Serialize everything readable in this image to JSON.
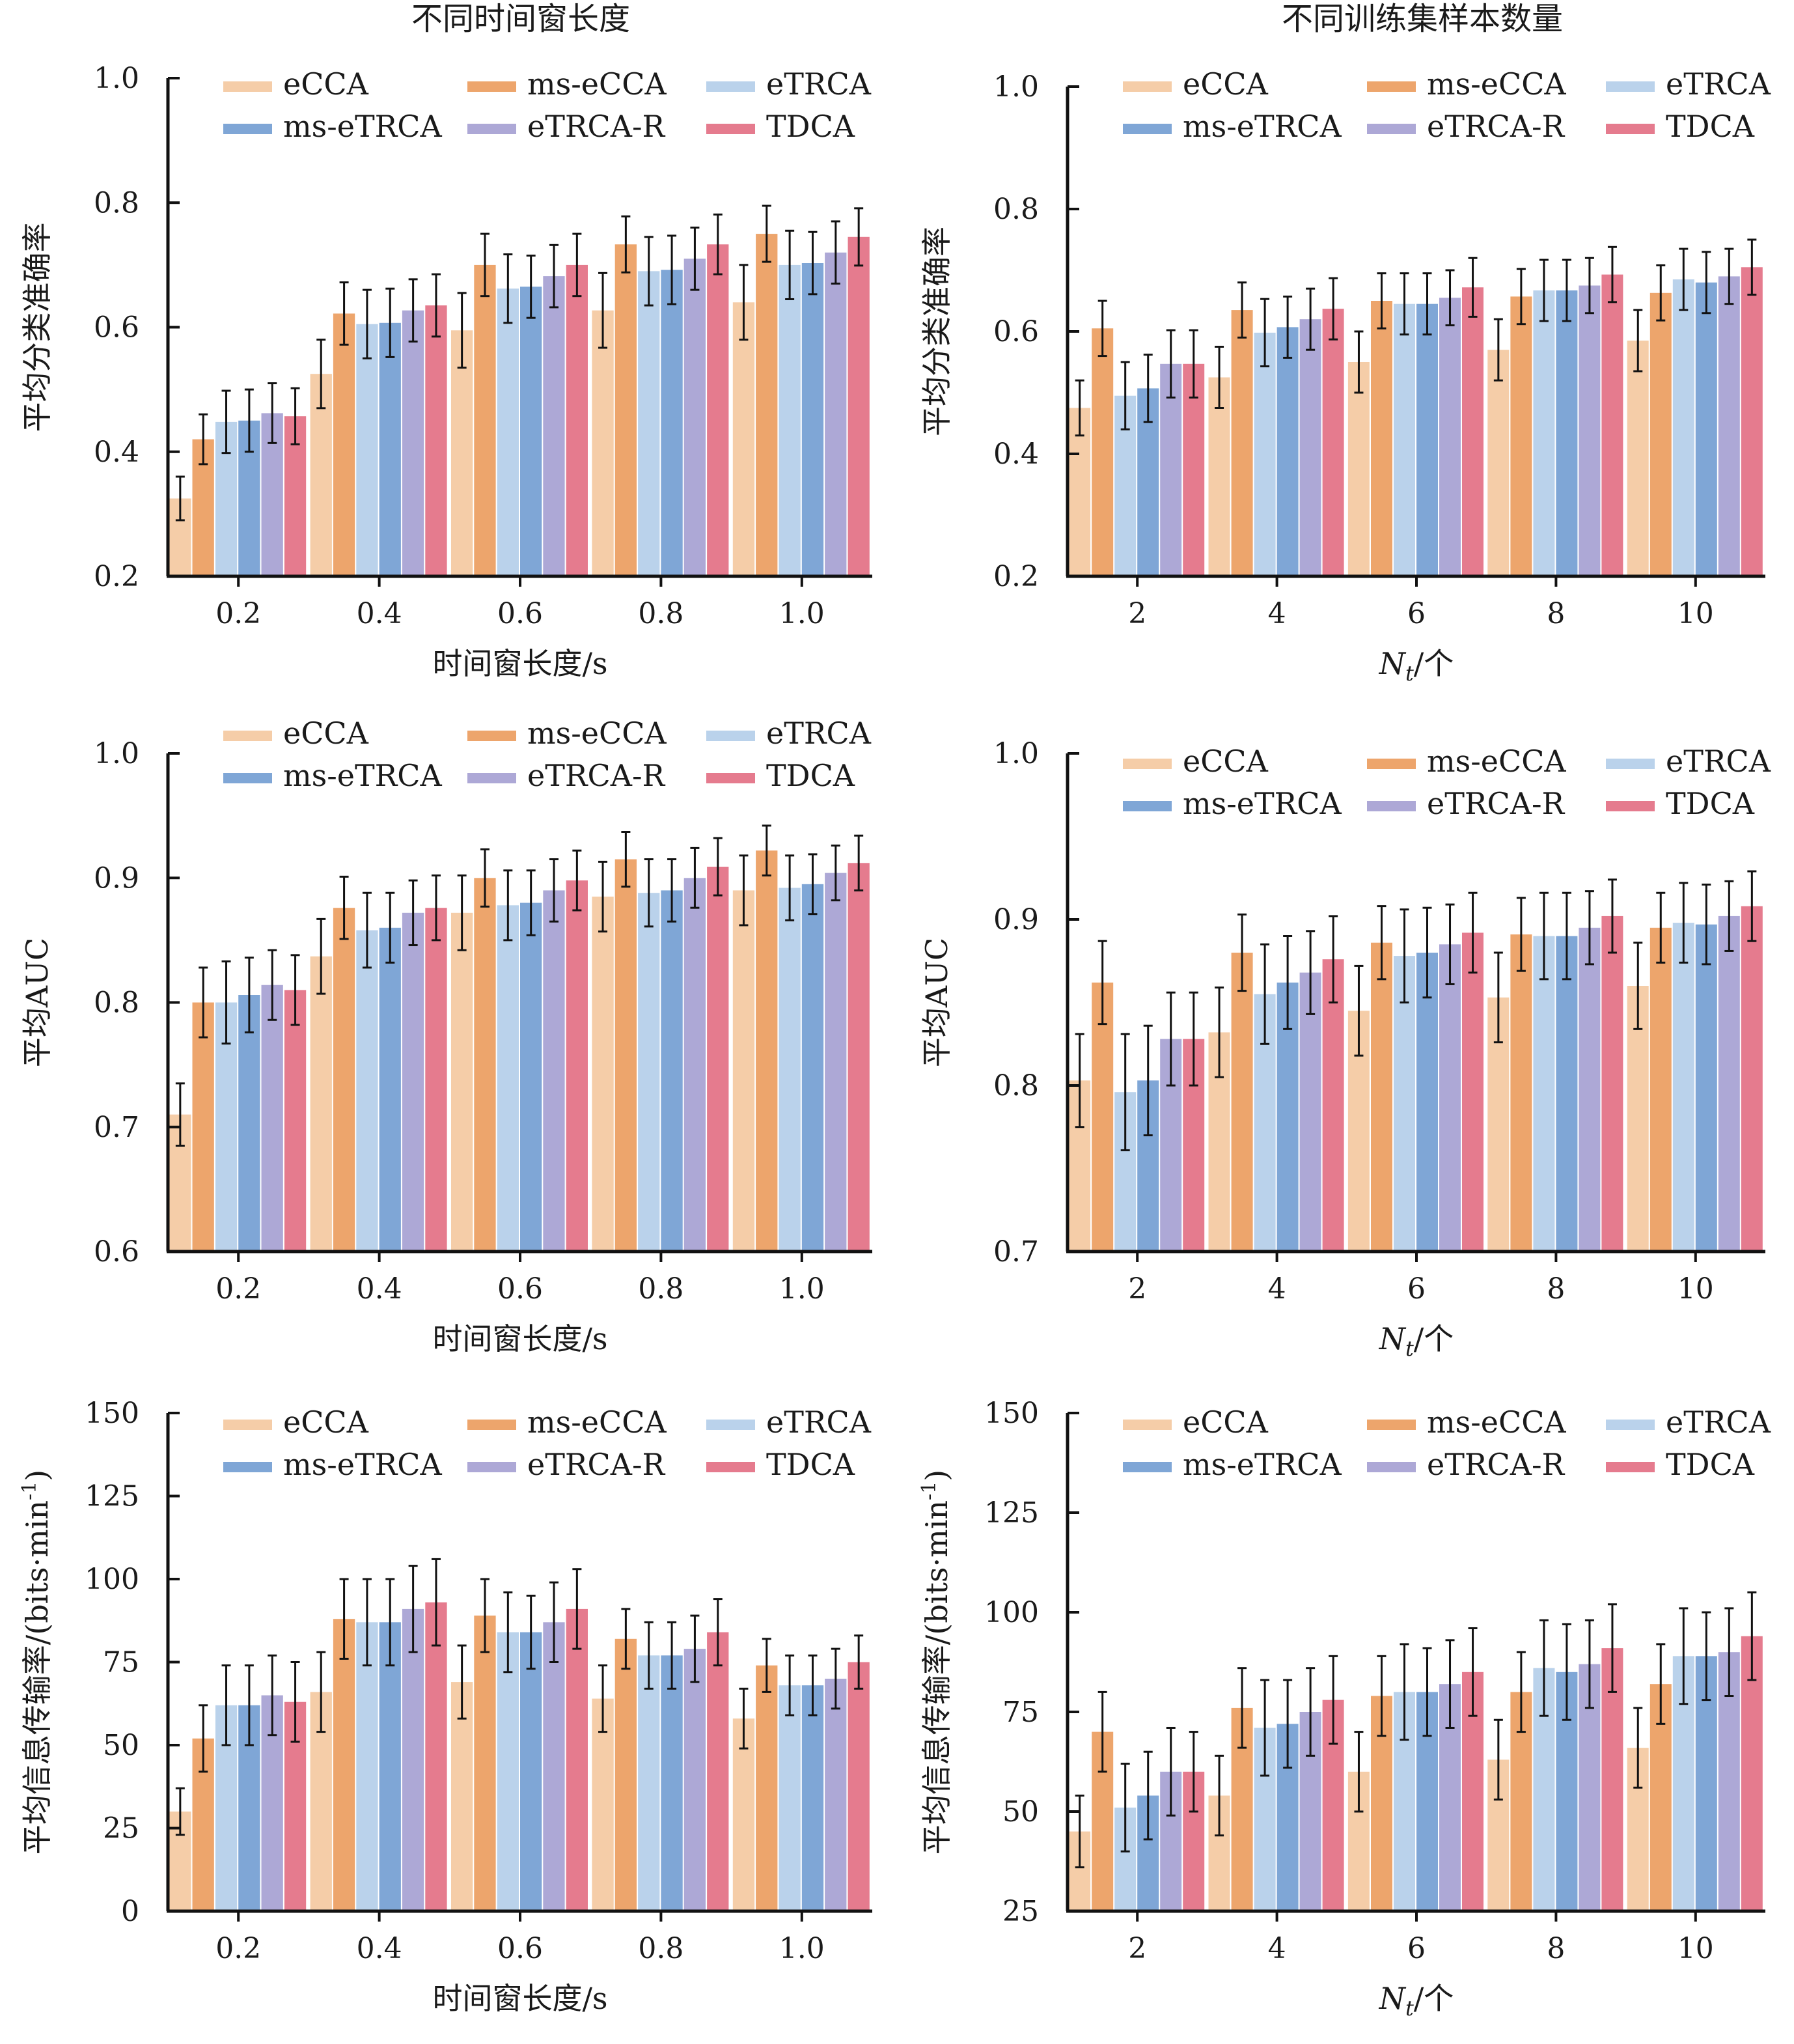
{
  "column_titles": [
    "不同时间窗长度",
    "不同训练集样本数量"
  ],
  "colors": {
    "eCCA": "#f5cda8",
    "ms-eCCA": "#eda56c",
    "eTRCA": "#bad2eb",
    "ms-eTRCA": "#7fa6d6",
    "eTRCA-R": "#ada8d6",
    "TDCA": "#e57b8e"
  },
  "chart_data": [
    {
      "type": "bar",
      "categories": [
        "0.2",
        "0.4",
        "0.6",
        "0.8",
        "1.0"
      ],
      "xlabel": "时间窗长度/s",
      "ylabel": "平均分类准确率",
      "ylim": [
        0.2,
        1.0
      ],
      "yticks": [
        "0.2",
        "0.4",
        "0.6",
        "0.8",
        "1.0"
      ],
      "legend": "top",
      "series": [
        {
          "name": "eCCA",
          "values": [
            0.325,
            0.525,
            0.595,
            0.627,
            0.64
          ],
          "errors": [
            0.035,
            0.055,
            0.06,
            0.06,
            0.06
          ]
        },
        {
          "name": "ms-eCCA",
          "values": [
            0.42,
            0.622,
            0.7,
            0.733,
            0.75
          ],
          "errors": [
            0.04,
            0.05,
            0.05,
            0.045,
            0.045
          ]
        },
        {
          "name": "eTRCA",
          "values": [
            0.448,
            0.605,
            0.662,
            0.69,
            0.7
          ],
          "errors": [
            0.05,
            0.055,
            0.055,
            0.055,
            0.055
          ]
        },
        {
          "name": "ms-eTRCA",
          "values": [
            0.45,
            0.607,
            0.665,
            0.692,
            0.703
          ],
          "errors": [
            0.05,
            0.055,
            0.05,
            0.055,
            0.05
          ]
        },
        {
          "name": "eTRCA-R",
          "values": [
            0.462,
            0.627,
            0.682,
            0.71,
            0.72
          ],
          "errors": [
            0.048,
            0.05,
            0.05,
            0.05,
            0.05
          ]
        },
        {
          "name": "TDCA",
          "values": [
            0.457,
            0.635,
            0.7,
            0.733,
            0.745
          ],
          "errors": [
            0.045,
            0.05,
            0.05,
            0.048,
            0.046
          ]
        }
      ]
    },
    {
      "type": "bar",
      "categories": [
        "2",
        "4",
        "6",
        "8",
        "10"
      ],
      "xlabel": "/个",
      "xlabel_symbol": "N",
      "xlabel_subscript": "t",
      "ylabel": "平均分类准确率",
      "ylim": [
        0.2,
        1.0
      ],
      "yticks": [
        "0.2",
        "0.4",
        "0.6",
        "0.8",
        "1.0"
      ],
      "legend": "top",
      "series": [
        {
          "name": "eCCA",
          "values": [
            0.475,
            0.525,
            0.55,
            0.57,
            0.585
          ],
          "errors": [
            0.045,
            0.05,
            0.05,
            0.05,
            0.05
          ]
        },
        {
          "name": "ms-eCCA",
          "values": [
            0.605,
            0.635,
            0.65,
            0.657,
            0.663
          ],
          "errors": [
            0.045,
            0.045,
            0.045,
            0.045,
            0.045
          ]
        },
        {
          "name": "eTRCA",
          "values": [
            0.495,
            0.598,
            0.645,
            0.667,
            0.685
          ],
          "errors": [
            0.055,
            0.055,
            0.05,
            0.05,
            0.05
          ]
        },
        {
          "name": "ms-eTRCA",
          "values": [
            0.507,
            0.607,
            0.645,
            0.667,
            0.68
          ],
          "errors": [
            0.055,
            0.05,
            0.05,
            0.05,
            0.05
          ]
        },
        {
          "name": "eTRCA-R",
          "values": [
            0.547,
            0.62,
            0.655,
            0.675,
            0.69
          ],
          "errors": [
            0.055,
            0.05,
            0.045,
            0.045,
            0.045
          ]
        },
        {
          "name": "TDCA",
          "values": [
            0.547,
            0.637,
            0.672,
            0.693,
            0.705
          ],
          "errors": [
            0.055,
            0.05,
            0.048,
            0.045,
            0.045
          ]
        }
      ]
    },
    {
      "type": "bar",
      "categories": [
        "0.2",
        "0.4",
        "0.6",
        "0.8",
        "1.0"
      ],
      "xlabel": "时间窗长度/s",
      "ylabel": "平均AUC",
      "ylim": [
        0.6,
        1.0
      ],
      "yticks": [
        "0.6",
        "0.7",
        "0.8",
        "0.9",
        "1.0"
      ],
      "legend": "top",
      "series": [
        {
          "name": "eCCA",
          "values": [
            0.71,
            0.837,
            0.872,
            0.885,
            0.89
          ],
          "errors": [
            0.025,
            0.03,
            0.03,
            0.028,
            0.028
          ]
        },
        {
          "name": "ms-eCCA",
          "values": [
            0.8,
            0.876,
            0.9,
            0.915,
            0.922
          ],
          "errors": [
            0.028,
            0.025,
            0.023,
            0.022,
            0.02
          ]
        },
        {
          "name": "eTRCA",
          "values": [
            0.8,
            0.858,
            0.878,
            0.888,
            0.892
          ],
          "errors": [
            0.033,
            0.03,
            0.028,
            0.027,
            0.026
          ]
        },
        {
          "name": "ms-eTRCA",
          "values": [
            0.806,
            0.86,
            0.88,
            0.89,
            0.895
          ],
          "errors": [
            0.03,
            0.028,
            0.026,
            0.025,
            0.024
          ]
        },
        {
          "name": "eTRCA-R",
          "values": [
            0.814,
            0.872,
            0.89,
            0.9,
            0.904
          ],
          "errors": [
            0.028,
            0.026,
            0.025,
            0.024,
            0.022
          ]
        },
        {
          "name": "TDCA",
          "values": [
            0.81,
            0.876,
            0.898,
            0.909,
            0.912
          ],
          "errors": [
            0.028,
            0.026,
            0.024,
            0.023,
            0.022
          ]
        }
      ]
    },
    {
      "type": "bar",
      "categories": [
        "2",
        "4",
        "6",
        "8",
        "10"
      ],
      "xlabel": "/个",
      "xlabel_symbol": "N",
      "xlabel_subscript": "t",
      "ylabel": "平均AUC",
      "ylim": [
        0.7,
        1.0
      ],
      "yticks": [
        "0.7",
        "0.8",
        "0.9",
        "1.0"
      ],
      "legend": "top",
      "series": [
        {
          "name": "eCCA",
          "values": [
            0.803,
            0.832,
            0.845,
            0.853,
            0.86
          ],
          "errors": [
            0.028,
            0.027,
            0.027,
            0.027,
            0.026
          ]
        },
        {
          "name": "ms-eCCA",
          "values": [
            0.862,
            0.88,
            0.886,
            0.891,
            0.895
          ],
          "errors": [
            0.025,
            0.023,
            0.022,
            0.022,
            0.021
          ]
        },
        {
          "name": "eTRCA",
          "values": [
            0.796,
            0.855,
            0.878,
            0.89,
            0.898
          ],
          "errors": [
            0.035,
            0.03,
            0.028,
            0.026,
            0.024
          ]
        },
        {
          "name": "ms-eTRCA",
          "values": [
            0.803,
            0.862,
            0.88,
            0.89,
            0.897
          ],
          "errors": [
            0.033,
            0.028,
            0.027,
            0.026,
            0.024
          ]
        },
        {
          "name": "eTRCA-R",
          "values": [
            0.828,
            0.868,
            0.885,
            0.895,
            0.902
          ],
          "errors": [
            0.028,
            0.025,
            0.024,
            0.022,
            0.021
          ]
        },
        {
          "name": "TDCA",
          "values": [
            0.828,
            0.876,
            0.892,
            0.902,
            0.908
          ],
          "errors": [
            0.028,
            0.026,
            0.024,
            0.022,
            0.021
          ]
        }
      ]
    },
    {
      "type": "bar",
      "categories": [
        "0.2",
        "0.4",
        "0.6",
        "0.8",
        "1.0"
      ],
      "xlabel": "时间窗长度/s",
      "ylabel": "平均信息传输率/(bits·min",
      "ylabel_superscript": "-1",
      "ylabel_suffix": ")",
      "ylim": [
        0,
        150
      ],
      "yticks": [
        "0",
        "25",
        "50",
        "75",
        "100",
        "125",
        "150"
      ],
      "legend": "top",
      "series": [
        {
          "name": "eCCA",
          "values": [
            30,
            66,
            69,
            64,
            58
          ],
          "errors": [
            7,
            12,
            11,
            10,
            9
          ]
        },
        {
          "name": "ms-eCCA",
          "values": [
            52,
            88,
            89,
            82,
            74
          ],
          "errors": [
            10,
            12,
            11,
            9,
            8
          ]
        },
        {
          "name": "eTRCA",
          "values": [
            62,
            87,
            84,
            77,
            68
          ],
          "errors": [
            12,
            13,
            12,
            10,
            9
          ]
        },
        {
          "name": "ms-eTRCA",
          "values": [
            62,
            87,
            84,
            77,
            68
          ],
          "errors": [
            12,
            13,
            11,
            10,
            9
          ]
        },
        {
          "name": "eTRCA-R",
          "values": [
            65,
            91,
            87,
            79,
            70
          ],
          "errors": [
            12,
            13,
            12,
            10,
            9
          ]
        },
        {
          "name": "TDCA",
          "values": [
            63,
            93,
            91,
            84,
            75
          ],
          "errors": [
            12,
            13,
            12,
            10,
            8
          ]
        }
      ]
    },
    {
      "type": "bar",
      "categories": [
        "2",
        "4",
        "6",
        "8",
        "10"
      ],
      "xlabel": "/个",
      "xlabel_symbol": "N",
      "xlabel_subscript": "t",
      "ylabel": "平均信息传输率/(bits·min",
      "ylabel_superscript": "-1",
      "ylabel_suffix": ")",
      "ylim": [
        25,
        150
      ],
      "yticks": [
        "25",
        "50",
        "75",
        "100",
        "125",
        "150"
      ],
      "legend": "top",
      "series": [
        {
          "name": "eCCA",
          "values": [
            45,
            54,
            60,
            63,
            66
          ],
          "errors": [
            9,
            10,
            10,
            10,
            10
          ]
        },
        {
          "name": "ms-eCCA",
          "values": [
            70,
            76,
            79,
            80,
            82
          ],
          "errors": [
            10,
            10,
            10,
            10,
            10
          ]
        },
        {
          "name": "eTRCA",
          "values": [
            51,
            71,
            80,
            86,
            89
          ],
          "errors": [
            11,
            12,
            12,
            12,
            12
          ]
        },
        {
          "name": "ms-eTRCA",
          "values": [
            54,
            72,
            80,
            85,
            89
          ],
          "errors": [
            11,
            11,
            11,
            12,
            11
          ]
        },
        {
          "name": "eTRCA-R",
          "values": [
            60,
            75,
            82,
            87,
            90
          ],
          "errors": [
            11,
            11,
            11,
            11,
            11
          ]
        },
        {
          "name": "TDCA",
          "values": [
            60,
            78,
            85,
            91,
            94
          ],
          "errors": [
            10,
            11,
            11,
            11,
            11
          ]
        }
      ]
    }
  ]
}
